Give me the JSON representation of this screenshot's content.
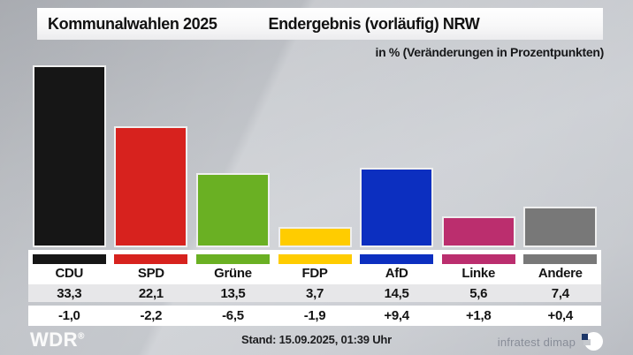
{
  "header": {
    "title_left": "Kommunalwahlen 2025",
    "title_right": "Endergebnis (vorläufig) NRW",
    "subtitle": "in % (Veränderungen in Prozentpunkten)"
  },
  "chart_data": {
    "type": "bar",
    "title": "Kommunalwahlen 2025 – Endergebnis (vorläufig) NRW",
    "ylabel": "in % (Veränderungen in Prozentpunkten)",
    "categories": [
      "CDU",
      "SPD",
      "Grüne",
      "FDP",
      "AfD",
      "Linke",
      "Andere"
    ],
    "values": [
      33.3,
      22.1,
      13.5,
      3.7,
      14.5,
      5.6,
      7.4
    ],
    "values_display": [
      "33,3",
      "22,1",
      "13,5",
      "3,7",
      "14,5",
      "5,6",
      "7,4"
    ],
    "changes_display": [
      "-1,0",
      "-2,2",
      "-6,5",
      "-1,9",
      "+9,4",
      "+1,8",
      "+0,4"
    ],
    "colors": [
      "#161616",
      "#d7221e",
      "#6ab023",
      "#ffcc00",
      "#0c2fc0",
      "#bb2e6e",
      "#787878"
    ],
    "ylim": [
      0,
      35
    ],
    "grid": false,
    "legend_position": "bottom-table"
  },
  "footer": {
    "broadcaster": "WDR",
    "registered_mark": "®",
    "stand": "Stand: 15.09.2025, 01:39 Uhr",
    "source": "infratest dimap"
  },
  "style_colors": {
    "background": "#c6c9ce",
    "header_bar": "#ffffff",
    "values_band": "#e7e7e9",
    "text": "#141414",
    "source_text": "#888d98",
    "dimap_blue": "#1c3668"
  }
}
